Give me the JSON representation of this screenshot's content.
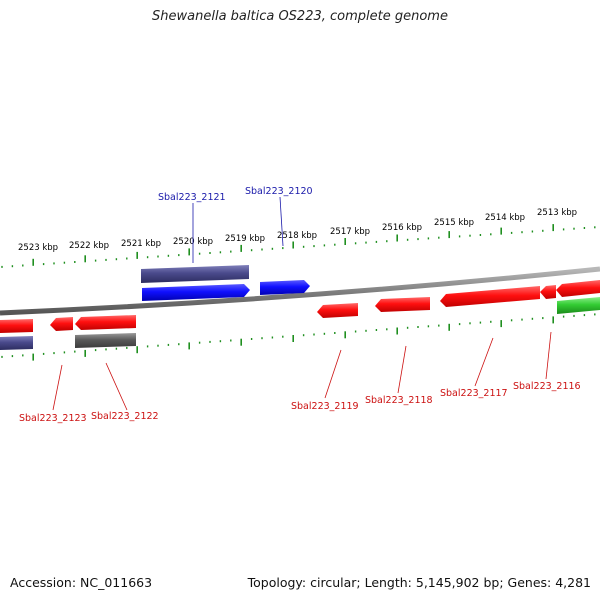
{
  "title": "Shewanella baltica OS223, complete genome",
  "footer": {
    "accession": "Accession: NC_011663",
    "summary": "Topology: circular; Length: 5,145,902 bp; Genes: 4,281"
  },
  "scale_labels": [
    "2523 kbp",
    "2522 kbp",
    "2521 kbp",
    "2520 kbp",
    "2519 kbp",
    "2518 kbp",
    "2517 kbp",
    "2516 kbp",
    "2515 kbp",
    "2514 kbp",
    "2513 kbp"
  ],
  "gene_labels": {
    "sbal223_2121": "Sbal223_2121",
    "sbal223_2120": "Sbal223_2120",
    "sbal223_2123": "Sbal223_2123",
    "sbal223_2122": "Sbal223_2122",
    "sbal223_2119": "Sbal223_2119",
    "sbal223_2118": "Sbal223_2118",
    "sbal223_2117": "Sbal223_2117",
    "sbal223_2116": "Sbal223_2116"
  },
  "colors": {
    "forward_cds": "#1a1aff",
    "forward_track": "#4a4a8c",
    "reverse_cds": "#ff1a1a",
    "reverse_track": "#5a5a5a",
    "rna": "#33cc33",
    "backbone": "#888888",
    "scale_ticks": "#1f8f1f",
    "label_forward": "#1a1aaa",
    "label_reverse": "#cc1111"
  }
}
